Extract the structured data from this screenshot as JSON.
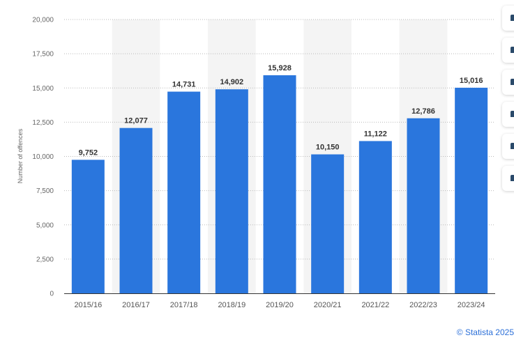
{
  "chart_data": {
    "type": "bar",
    "categories": [
      "2015/16",
      "2016/17",
      "2017/18",
      "2018/19",
      "2019/20",
      "2020/21",
      "2021/22",
      "2022/23",
      "2023/24"
    ],
    "values": [
      9752,
      12077,
      14731,
      14902,
      15928,
      10150,
      11122,
      12786,
      15016
    ],
    "value_labels": [
      "9,752",
      "12,077",
      "14,731",
      "14,902",
      "15,928",
      "10,150",
      "11,122",
      "12,786",
      "15,016"
    ],
    "ylabel": "Number of offences",
    "ylim": [
      0,
      20000
    ],
    "yticks": [
      0,
      2500,
      5000,
      7500,
      10000,
      12500,
      15000,
      17500,
      20000
    ],
    "ytick_labels": [
      "0",
      "2,500",
      "5,000",
      "7,500",
      "10,000",
      "12,500",
      "15,000",
      "17,500",
      "20,000"
    ],
    "grid": true,
    "bar_color": "#2a76dd",
    "band_color": "#f4f4f4",
    "grid_color": "#b9b9b9",
    "axis_color": "#333333"
  },
  "toolbar": {
    "icons": [
      "star-icon",
      "bell-icon",
      "settings-icon",
      "share-icon",
      "quote-icon",
      "print-icon"
    ]
  },
  "credit": "© Statista 2025"
}
